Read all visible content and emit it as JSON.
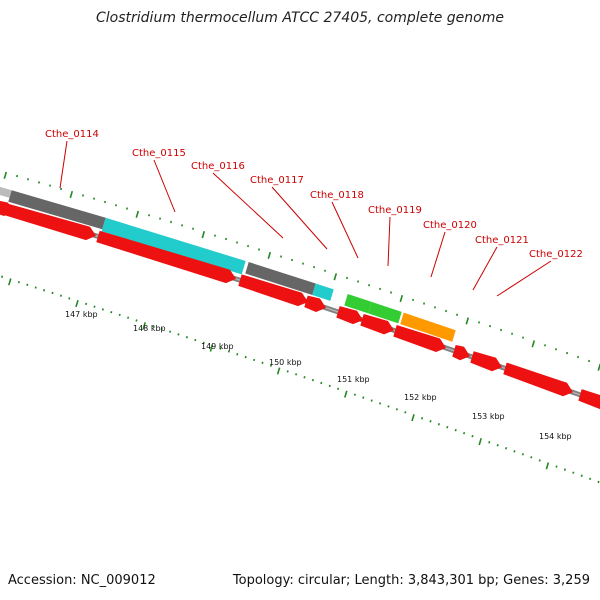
{
  "title": "Clostridium thermocellum ATCC 27405, complete genome",
  "accession_text": "Accession: NC_009012",
  "summary_text": "Topology: circular; Length: 3,843,301 bp; Genes: 3,259",
  "colors": {
    "backbone": "#808080",
    "cds_red": "#ee1111",
    "cyan": "#22cccc",
    "gray": "#666666",
    "light_gray": "#bbbbbb",
    "green": "#33cc33",
    "orange": "#ff9900",
    "tick_green": "#228822",
    "label_red": "#cc0000"
  },
  "genes": [
    {
      "name": "Cthe_0114"
    },
    {
      "name": "Cthe_0115"
    },
    {
      "name": "Cthe_0116"
    },
    {
      "name": "Cthe_0117"
    },
    {
      "name": "Cthe_0118"
    },
    {
      "name": "Cthe_0119"
    },
    {
      "name": "Cthe_0120"
    },
    {
      "name": "Cthe_0121"
    },
    {
      "name": "Cthe_0122"
    }
  ],
  "kbp_labels": [
    "147 kbp",
    "148 kbp",
    "149 kbp",
    "150 kbp",
    "151 kbp",
    "152 kbp",
    "153 kbp",
    "154 kbp"
  ]
}
